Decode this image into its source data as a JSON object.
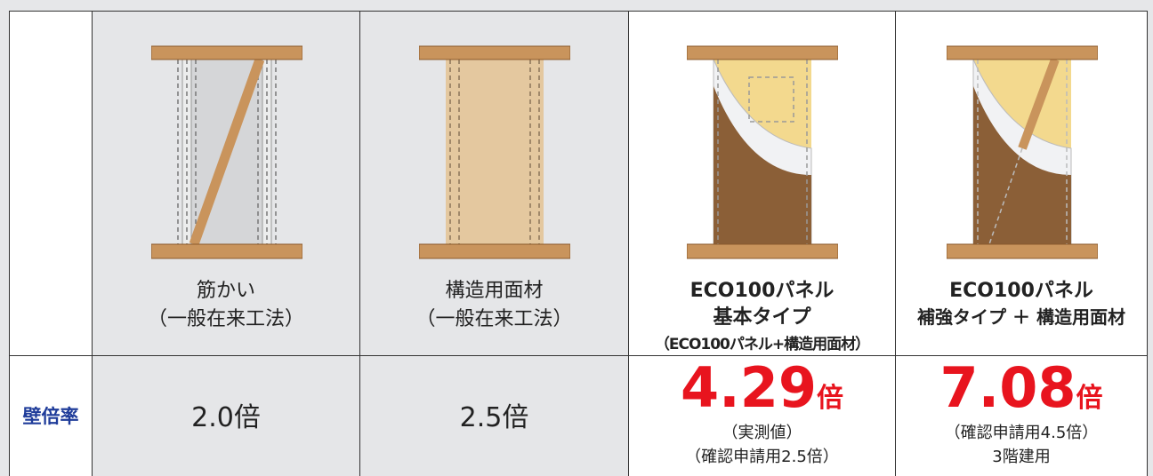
{
  "row_label": "壁倍率",
  "columns": [
    {
      "title_lines": [
        "筋かい",
        "（一般在来工法）"
      ],
      "value": "2.0倍"
    },
    {
      "title_lines": [
        "構造用面材",
        "（一般在来工法）"
      ],
      "value": "2.5倍"
    },
    {
      "title_lines": [
        "ECO100パネル",
        "基本タイプ",
        "（ECO100パネル+構造用面材）"
      ],
      "value": "4.29",
      "unit": "倍",
      "notes": [
        "（実測値）",
        "（確認申請用2.5倍）"
      ]
    },
    {
      "title_lines": [
        "ECO100パネル",
        "補強タイプ ＋ 構造用面材"
      ],
      "value": "7.08",
      "unit": "倍",
      "notes": [
        "（確認申請用4.5倍）",
        "3階建用"
      ]
    }
  ]
}
